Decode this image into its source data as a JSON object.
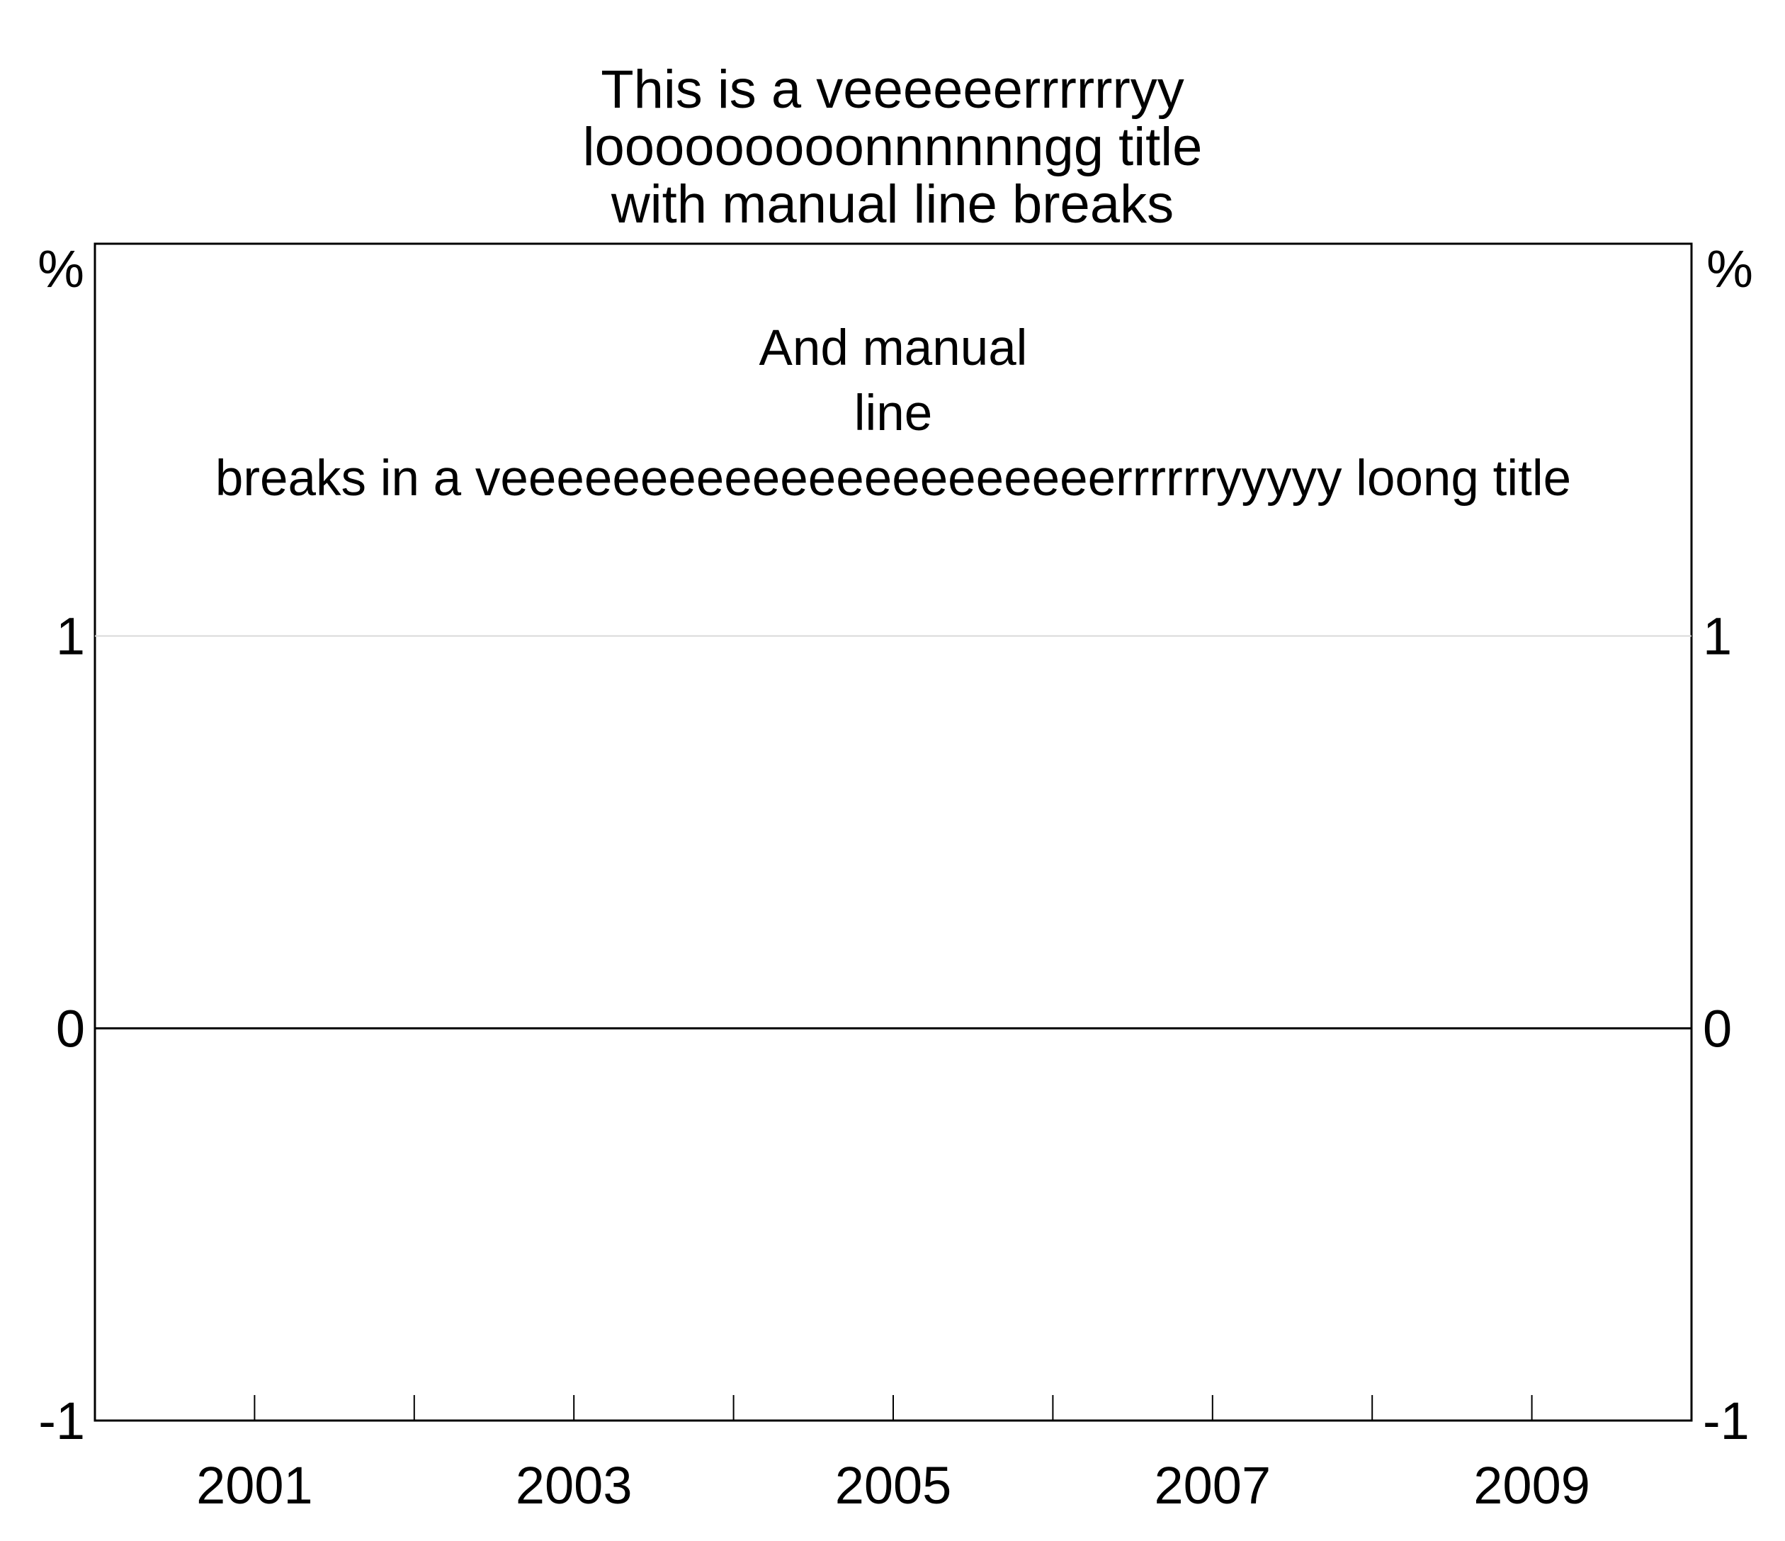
{
  "chart_data": {
    "type": "line",
    "title_lines": [
      "This is a veeeeeerrrrrryy",
      "looooooooonnnnnngg title",
      "with manual line breaks"
    ],
    "subtitle_lines": [
      "And manual",
      "line",
      "breaks in a veeeeeeeeeeeeeeeeeeeeeerrrrrryyyyy loong title"
    ],
    "y_unit_left": "%",
    "y_unit_right": "%",
    "ylim": [
      -1,
      2
    ],
    "yticks": [
      {
        "value": 1,
        "label": "1"
      },
      {
        "value": 0,
        "label": "0"
      },
      {
        "value": -1,
        "label": "-1"
      }
    ],
    "xlim": [
      2000,
      2010
    ],
    "xtick_marks": [
      2001,
      2002,
      2003,
      2004,
      2005,
      2006,
      2007,
      2008,
      2009
    ],
    "xtick_labels": [
      {
        "value": 2001,
        "label": "2001"
      },
      {
        "value": 2003,
        "label": "2003"
      },
      {
        "value": 2005,
        "label": "2005"
      },
      {
        "value": 2007,
        "label": "2007"
      },
      {
        "value": 2009,
        "label": "2009"
      }
    ],
    "gridlines": [
      1
    ],
    "zero_line": 0,
    "series": [],
    "colors": {
      "axis": "#000000",
      "grid": "#d9d9d9",
      "zero_line": "#000000"
    }
  }
}
